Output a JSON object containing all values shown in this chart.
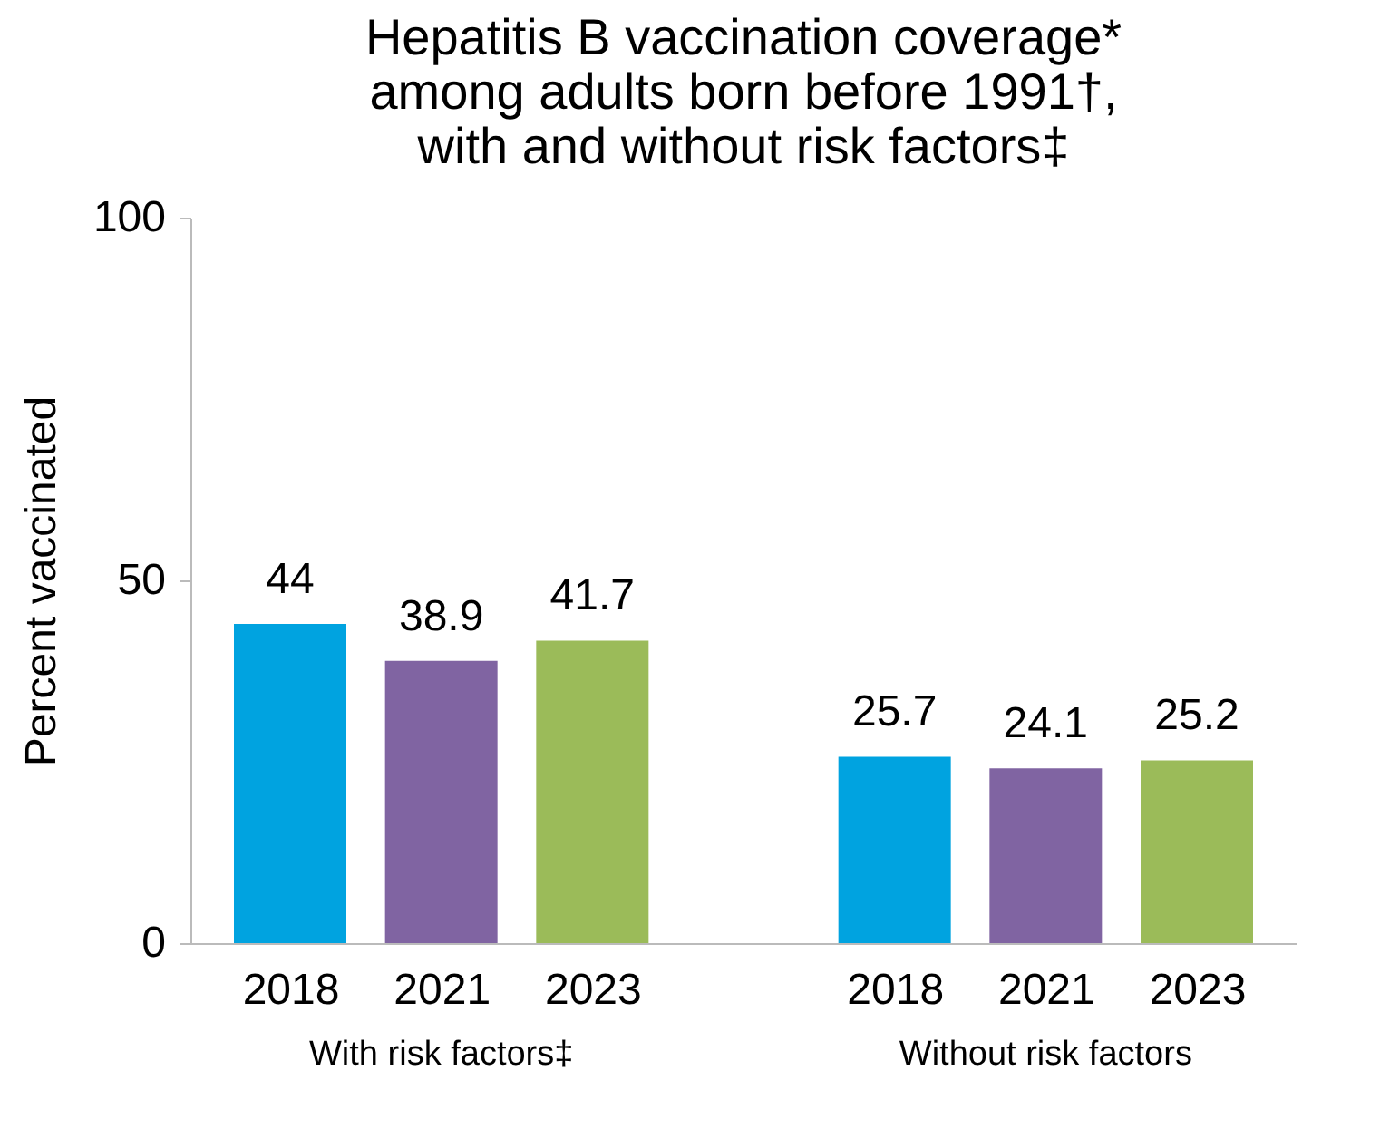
{
  "chart_data": {
    "type": "bar",
    "title": "Hepatitis B vaccination coverage*\namong adults born before 1991†,\nwith and without risk factors‡",
    "ylabel": "Percent vaccinated",
    "categories": [
      "2018",
      "2021",
      "2023",
      "2018",
      "2021",
      "2023"
    ],
    "values": [
      44,
      38.9,
      41.7,
      25.7,
      24.1,
      25.2
    ],
    "colors": [
      "#00a3e0",
      "#8064a2",
      "#9bbb59",
      "#00a3e0",
      "#8064a2",
      "#9bbb59"
    ],
    "ylim": [
      0,
      100
    ],
    "yticks": [
      0,
      50,
      100
    ],
    "annotations": [
      "With risk factors‡",
      "Without risk factors"
    ],
    "data_labels": true,
    "grid": false
  }
}
